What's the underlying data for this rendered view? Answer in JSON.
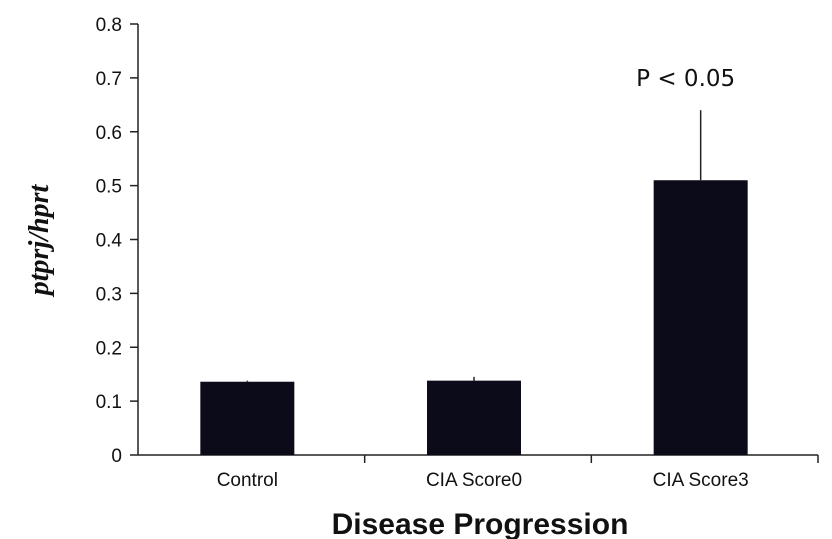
{
  "chart_data": {
    "type": "bar",
    "categories": [
      "Control",
      "CIA Score0",
      "CIA Score3"
    ],
    "values": [
      0.136,
      0.138,
      0.51
    ],
    "errors": [
      0.002,
      0.007,
      0.13
    ],
    "ylabel": "ptprj/hprt",
    "xlabel": "Disease Progression",
    "ylim": [
      0,
      0.8
    ],
    "yticks": [
      "0",
      "0.1",
      "0.2",
      "0.3",
      "0.4",
      "0.5",
      "0.6",
      "0.7",
      "0.8"
    ],
    "annotation": {
      "text": "P < 0.05",
      "category": "CIA Score3"
    },
    "grid": false,
    "legend": "none",
    "bar_color": "#0c0b1a"
  }
}
